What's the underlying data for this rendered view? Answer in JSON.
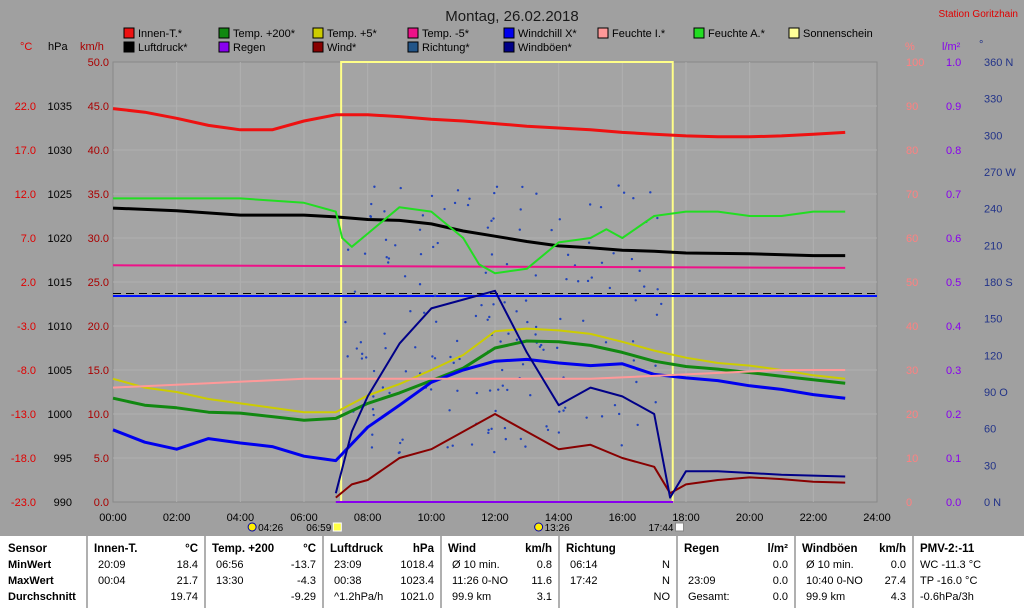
{
  "title": "Montag, 26.02.2018",
  "station": "Station Goritzhain",
  "legend": [
    {
      "label": "Innen-T.*",
      "color": "#ee1111"
    },
    {
      "label": "Temp. +200*",
      "color": "#118811"
    },
    {
      "label": "Temp. +5*",
      "color": "#cccc00"
    },
    {
      "label": "Temp. -5*",
      "color": "#ee1188"
    },
    {
      "label": "Windchill X*",
      "color": "#0000ee"
    },
    {
      "label": "Feuchte I.*",
      "color": "#ff9999"
    },
    {
      "label": "Feuchte A.*",
      "color": "#22dd22"
    },
    {
      "label": "Sonnenschein",
      "color": "#ffff99"
    },
    {
      "label": "Luftdruck*",
      "color": "#000000"
    },
    {
      "label": "Regen",
      "color": "#8800ee"
    },
    {
      "label": "Wind*",
      "color": "#880000"
    },
    {
      "label": "Richtung*",
      "color": "#225588"
    },
    {
      "label": "Windböen*",
      "color": "#000088"
    }
  ],
  "axis_units": {
    "temp": "°C",
    "pressure": "hPa",
    "speed": "km/h",
    "percent": "%",
    "rain": "l/m²",
    "direction": "°"
  },
  "axes": {
    "temp_ticks": [
      "22.0",
      "17.0",
      "12.0",
      "7.0",
      "2.0",
      "-3.0",
      "-8.0",
      "-13.0",
      "-18.0",
      "-23.0"
    ],
    "pressure_ticks": [
      "1035",
      "1030",
      "1025",
      "1020",
      "1015",
      "1010",
      "1005",
      "1000",
      "995",
      "990"
    ],
    "speed_ticks": [
      "50.0",
      "45.0",
      "40.0",
      "35.0",
      "30.0",
      "25.0",
      "20.0",
      "15.0",
      "10.0",
      "5.0",
      "0.0"
    ],
    "percent_ticks": [
      "100",
      "90",
      "80",
      "70",
      "60",
      "50",
      "40",
      "30",
      "20",
      "10",
      "0"
    ],
    "rain_ticks": [
      "1.0",
      "0.9",
      "0.8",
      "0.7",
      "0.6",
      "0.5",
      "0.4",
      "0.3",
      "0.2",
      "0.1",
      "0.0"
    ],
    "direction_ticks": [
      "360 N",
      "330",
      "300",
      "270 W",
      "240",
      "210",
      "180 S",
      "150",
      "120",
      "90 O",
      "60",
      "30",
      "0 N"
    ],
    "time_ticks": [
      "00:00",
      "02:00",
      "04:00",
      "06:00",
      "08:00",
      "10:00",
      "12:00",
      "14:00",
      "16:00",
      "18:00",
      "20:00",
      "22:00",
      "24:00"
    ]
  },
  "events": {
    "moonset": "04:26",
    "sunrise": "06:59",
    "moonrise": "13:26",
    "sunset": "17:44"
  },
  "chart_data": {
    "type": "line",
    "title": "Montag, 26.02.2018",
    "x_range": [
      "00:00",
      "24:00"
    ],
    "sunshine_interval": [
      "07:10",
      "17:35"
    ],
    "series": [
      {
        "name": "Innen-T.*",
        "axis": "temp",
        "x": [
          0,
          1,
          2,
          3,
          4,
          5,
          6,
          7,
          8,
          9,
          10,
          11,
          12,
          13,
          14,
          15,
          16,
          17,
          18,
          19,
          20,
          21,
          22,
          23
        ],
        "values": [
          21.7,
          21.3,
          20.6,
          19.8,
          19.3,
          19.3,
          20.3,
          21.0,
          21.0,
          20.8,
          20.5,
          20.3,
          20.0,
          19.7,
          19.5,
          19.3,
          19.0,
          18.8,
          18.6,
          18.5,
          18.5,
          18.6,
          18.8,
          19.0
        ]
      },
      {
        "name": "Luftdruck*",
        "axis": "pressure",
        "x": [
          0,
          2,
          4,
          6,
          7,
          8,
          9,
          10,
          11,
          12,
          13,
          14,
          15,
          16,
          17,
          18,
          20,
          22,
          23
        ],
        "values": [
          1023.4,
          1023.1,
          1022.6,
          1022.6,
          1022.4,
          1022.1,
          1022.0,
          1021.6,
          1020.8,
          1020.2,
          1019.6,
          1019.1,
          1018.9,
          1018.6,
          1018.5,
          1018.3,
          1018.2,
          1018.0,
          1018.0
        ]
      },
      {
        "name": "Temp. +200*",
        "axis": "temp",
        "x": [
          0,
          1,
          2,
          3,
          4,
          5,
          6,
          7,
          8,
          9,
          10,
          11,
          12,
          13,
          14,
          15,
          16,
          17,
          18,
          19,
          20,
          21,
          22,
          23
        ],
        "values": [
          -11.2,
          -12.0,
          -12.3,
          -12.8,
          -12.9,
          -13.3,
          -13.7,
          -13.5,
          -11.8,
          -10.6,
          -9.2,
          -7.8,
          -5.5,
          -4.7,
          -4.8,
          -5.2,
          -6.0,
          -7.0,
          -7.6,
          -7.9,
          -8.3,
          -8.7,
          -9.1,
          -9.5
        ]
      },
      {
        "name": "Temp. +5*",
        "axis": "temp",
        "x": [
          0,
          1,
          2,
          3,
          4,
          5,
          6,
          7,
          8,
          9,
          10,
          11,
          12,
          13,
          14,
          15,
          16,
          17,
          18,
          19,
          20,
          21,
          22,
          23
        ],
        "values": [
          -9.0,
          -10.0,
          -10.5,
          -11.3,
          -11.8,
          -12.3,
          -12.8,
          -12.8,
          -10.9,
          -9.6,
          -8.0,
          -6.3,
          -3.6,
          -3.3,
          -3.5,
          -3.9,
          -4.8,
          -5.8,
          -6.6,
          -7.2,
          -7.5,
          -8.0,
          -8.6,
          -9.0
        ]
      },
      {
        "name": "Temp. -5*",
        "axis": "temp",
        "x": [
          0,
          23
        ],
        "values": [
          3.9,
          3.6
        ]
      },
      {
        "name": "Windchill X*",
        "axis": "temp",
        "x": [
          0,
          1,
          2,
          3,
          4,
          5,
          6,
          7,
          8,
          9,
          10,
          11,
          12,
          13,
          14,
          15,
          16,
          17,
          18,
          19,
          20,
          21,
          22,
          23
        ],
        "values": [
          -14.8,
          -16.2,
          -17.0,
          -15.8,
          -16.3,
          -16.7,
          -17.8,
          -18.3,
          -14.5,
          -12.0,
          -9.4,
          -8.0,
          -7.0,
          -6.8,
          -7.2,
          -7.5,
          -7.3,
          -8.5,
          -8.9,
          -9.2,
          -9.8,
          -10.2,
          -10.8,
          -11.2
        ]
      },
      {
        "name": "Feuchte I.*",
        "axis": "percent",
        "x": [
          0,
          3,
          6,
          9,
          12,
          15,
          18,
          21,
          23
        ],
        "values": [
          26,
          27,
          28,
          28,
          28,
          28,
          29,
          30,
          30
        ]
      },
      {
        "name": "Feuchte A.*",
        "axis": "percent",
        "x": [
          0,
          2,
          4,
          6,
          7.0,
          7.2,
          7.5,
          8,
          9,
          10,
          11,
          11.5,
          12,
          13,
          14,
          15,
          15.5,
          16,
          17,
          18,
          19,
          20,
          21,
          22,
          23
        ],
        "values": [
          69,
          69,
          69,
          68,
          66,
          60,
          58,
          61,
          67,
          66,
          60,
          54,
          52,
          53,
          59,
          60,
          62,
          60,
          65,
          66,
          66,
          65,
          65,
          66,
          66
        ]
      },
      {
        "name": "Wind*",
        "axis": "speed",
        "x": [
          7.0,
          7.5,
          8,
          9,
          10,
          11,
          12,
          13,
          14,
          15,
          16,
          17,
          17.5,
          18,
          19,
          20,
          21,
          22,
          23
        ],
        "values": [
          0.5,
          2.0,
          2.5,
          5.0,
          6.0,
          8.0,
          10.0,
          8.0,
          6.0,
          6.5,
          5.0,
          4.0,
          1.0,
          2.0,
          2.5,
          2.8,
          2.6,
          2.3,
          2.2
        ]
      },
      {
        "name": "Windböen*",
        "axis": "speed",
        "x": [
          7.0,
          7.5,
          8,
          9,
          10,
          11,
          12,
          13,
          14,
          15,
          16,
          17,
          17.5,
          18,
          19,
          20,
          21,
          22,
          23
        ],
        "values": [
          1.0,
          8.0,
          12.0,
          18.0,
          22.0,
          23.0,
          24.0,
          17.0,
          11.0,
          13.0,
          12.0,
          10.0,
          0.5,
          3.5,
          3.5,
          3.3,
          3.1,
          3.0,
          2.9
        ]
      },
      {
        "name": "Regen",
        "axis": "rain",
        "x": [
          7.0,
          17.6
        ],
        "values": [
          0.0,
          0.0
        ]
      }
    ],
    "dashed_reference": {
      "axis": "temp",
      "value": 0.7
    },
    "direction_reference": {
      "axis": "direction",
      "value": 180
    }
  },
  "stats": {
    "labels": {
      "sensor": "Sensor",
      "min": "MinWert",
      "max": "MaxWert",
      "avg": "Durchschnitt"
    },
    "columns": [
      {
        "title": "Innen-T.",
        "unit": "°C",
        "rows": [
          [
            "20:09",
            "18.4"
          ],
          [
            "00:04",
            "21.7"
          ],
          [
            "",
            "19.74"
          ]
        ]
      },
      {
        "title": "Temp. +200",
        "unit": "°C",
        "rows": [
          [
            "06:56",
            "-13.7"
          ],
          [
            "13:30",
            "-4.3"
          ],
          [
            "",
            "-9.29"
          ]
        ]
      },
      {
        "title": "Luftdruck",
        "unit": "hPa",
        "rows": [
          [
            "23:09",
            "1018.4"
          ],
          [
            "00:38",
            "1023.4"
          ],
          [
            "^1.2hPa/h",
            "1021.0"
          ]
        ]
      },
      {
        "title": "Wind",
        "unit": "km/h",
        "rows": [
          [
            "Ø 10 min.",
            "0.8"
          ],
          [
            "11:26   0-NO",
            "11.6"
          ],
          [
            "99.9 km",
            "3.1"
          ]
        ]
      },
      {
        "title": "Richtung",
        "unit": "",
        "rows": [
          [
            "06:14",
            "N"
          ],
          [
            "17:42",
            "N"
          ],
          [
            "",
            "NO"
          ]
        ]
      },
      {
        "title": "Regen",
        "unit": "l/m²",
        "rows": [
          [
            "",
            "0.0"
          ],
          [
            "23:09",
            "0.0"
          ],
          [
            "Gesamt:",
            "0.0"
          ]
        ]
      },
      {
        "title": "Windböen",
        "unit": "km/h",
        "rows": [
          [
            "Ø 10 min.",
            "0.0"
          ],
          [
            "10:40   0-NO",
            "27.4"
          ],
          [
            "99.9 km",
            "4.3"
          ]
        ]
      }
    ],
    "pmv": {
      "title": "PMV-2:-11",
      "lines": [
        "WC -11.3 °C",
        "TP -16.0 °C",
        "-0.6hPa/3h"
      ]
    }
  }
}
